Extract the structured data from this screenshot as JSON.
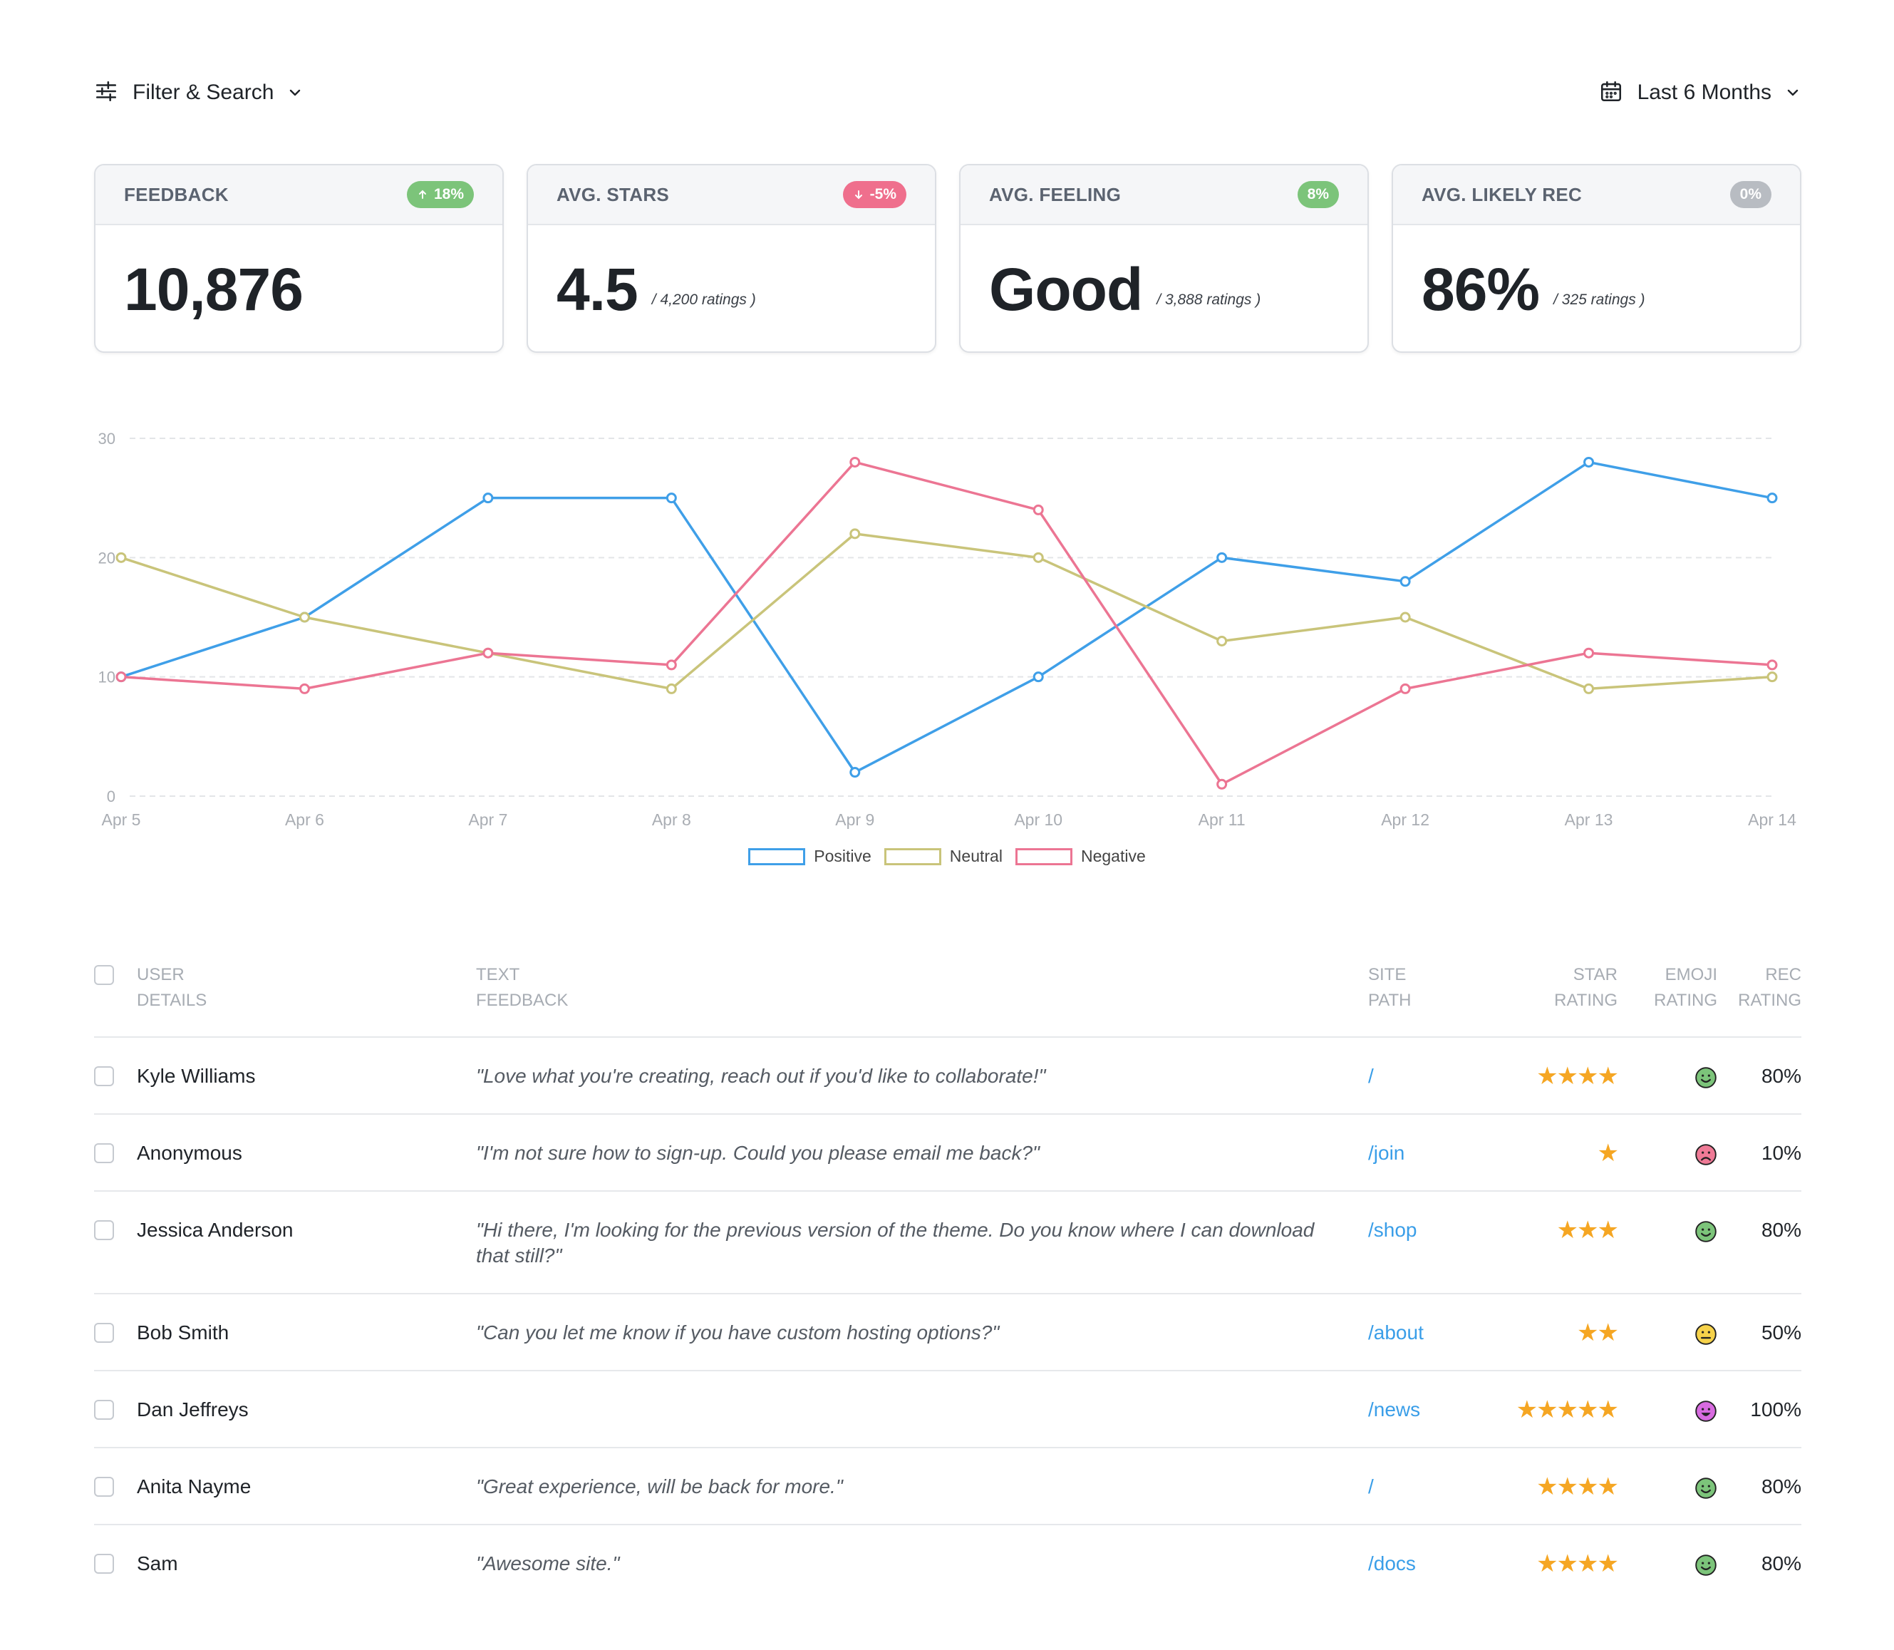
{
  "toolbar": {
    "filter_label": "Filter & Search",
    "filter_icon": "sliders-icon",
    "range_label": "Last 6 Months",
    "range_icon": "calendar-icon"
  },
  "cards": [
    {
      "title": "FEEDBACK",
      "badge": "18%",
      "badge_dir": "up",
      "value": "10,876",
      "sub": ""
    },
    {
      "title": "AVG. STARS",
      "badge": "-5%",
      "badge_dir": "down",
      "value": "4.5",
      "sub": "/ 4,200 ratings )"
    },
    {
      "title": "AVG. FEELING",
      "badge": "8%",
      "badge_dir": "none",
      "value": "Good",
      "sub": "/ 3,888 ratings )"
    },
    {
      "title": "AVG. LIKELY REC",
      "badge": "0%",
      "badge_dir": "flat",
      "value": "86%",
      "sub": "/ 325 ratings )"
    }
  ],
  "chart_data": {
    "type": "line",
    "x": [
      "Apr 5",
      "Apr 6",
      "Apr 7",
      "Apr 8",
      "Apr 9",
      "Apr 10",
      "Apr 11",
      "Apr 12",
      "Apr 13",
      "Apr 14"
    ],
    "ylim": [
      0,
      30
    ],
    "yticks": [
      0,
      10,
      20,
      30
    ],
    "grid": true,
    "legend": "bottom-center",
    "series": [
      {
        "name": "Positive",
        "color": "#3f9fe8",
        "values": [
          10,
          15,
          25,
          25,
          2,
          10,
          20,
          18,
          28,
          25
        ]
      },
      {
        "name": "Neutral",
        "color": "#c9c47a",
        "values": [
          20,
          15,
          12,
          9,
          22,
          20,
          13,
          15,
          9,
          10
        ]
      },
      {
        "name": "Negative",
        "color": "#ec7593",
        "values": [
          10,
          9,
          12,
          11,
          28,
          24,
          1,
          9,
          12,
          11
        ]
      }
    ]
  },
  "table": {
    "headers": {
      "user": [
        "USER",
        "DETAILS"
      ],
      "text": [
        "TEXT",
        "FEEDBACK"
      ],
      "path": [
        "SITE",
        "PATH"
      ],
      "star": [
        "STAR",
        "RATING"
      ],
      "emoji": [
        "EMOJI",
        "RATING"
      ],
      "rec": [
        "REC",
        "RATING"
      ]
    },
    "rows": [
      {
        "user": "Kyle Williams",
        "text": "\"Love what you're creating, reach out if you'd like to collaborate!\"",
        "path": "/",
        "stars": "★★★★",
        "emoji": "happy",
        "rec": "80%"
      },
      {
        "user": "Anonymous",
        "text": "\"I'm not sure how to sign-up. Could you please email me back?\"",
        "path": "/join",
        "stars": "★",
        "emoji": "sad",
        "rec": "10%"
      },
      {
        "user": "Jessica Anderson",
        "text": "\"Hi there, I'm looking for the previous version of the theme. Do you know where I can download that still?\"",
        "path": "/shop",
        "stars": "★★★",
        "emoji": "happy",
        "rec": "80%"
      },
      {
        "user": "Bob Smith",
        "text": "\"Can you let me know if you have custom hosting options?\"",
        "path": "/about",
        "stars": "★★",
        "emoji": "neutral",
        "rec": "50%"
      },
      {
        "user": "Dan Jeffreys",
        "text": "",
        "path": "/news",
        "stars": "★★★★★",
        "emoji": "ecstatic",
        "rec": "100%"
      },
      {
        "user": "Anita Nayme",
        "text": "\"Great experience, will be back for more.\"",
        "path": "/",
        "stars": "★★★★",
        "emoji": "happy",
        "rec": "80%"
      },
      {
        "user": "Sam",
        "text": "\"Awesome site.\"",
        "path": "/docs",
        "stars": "★★★★",
        "emoji": "happy",
        "rec": "80%"
      }
    ]
  }
}
